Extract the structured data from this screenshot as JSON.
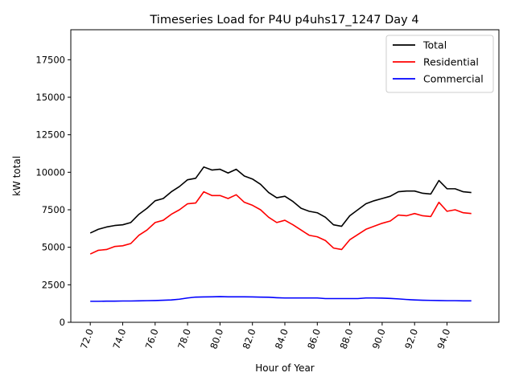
{
  "chart_data": {
    "type": "line",
    "title": "Timeseries Load for P4U p4uhs17_1247  Day 4",
    "xlabel": "Hour of Year",
    "ylabel": "kW total",
    "xlim": [
      70.8,
      97.2
    ],
    "ylim": [
      0,
      19500
    ],
    "grid": false,
    "legend_position": "top-right",
    "x_ticks": [
      72,
      74,
      76,
      78,
      80,
      82,
      84,
      86,
      88,
      90,
      92,
      94
    ],
    "x_tick_labels": [
      "72.0",
      "74.0",
      "76.0",
      "78.0",
      "80.0",
      "82.0",
      "84.0",
      "86.0",
      "88.0",
      "90.0",
      "92.0",
      "94.0"
    ],
    "y_ticks": [
      0,
      2500,
      5000,
      7500,
      10000,
      12500,
      15000,
      17500
    ],
    "y_tick_labels": [
      "0",
      "2500",
      "5000",
      "7500",
      "10000",
      "12500",
      "15000",
      "17500"
    ],
    "x": [
      72.0,
      72.5,
      73.0,
      73.5,
      74.0,
      74.5,
      75.0,
      75.5,
      76.0,
      76.5,
      77.0,
      77.5,
      78.0,
      78.5,
      79.0,
      79.5,
      80.0,
      80.5,
      81.0,
      81.5,
      82.0,
      82.5,
      83.0,
      83.5,
      84.0,
      84.5,
      85.0,
      85.5,
      86.0,
      86.5,
      87.0,
      87.5,
      88.0,
      88.5,
      89.0,
      89.5,
      90.0,
      90.5,
      91.0,
      91.5,
      92.0,
      92.5,
      93.0,
      93.5,
      94.0,
      94.5,
      95.0,
      95.5
    ],
    "series": [
      {
        "name": "Total",
        "color": "#000000",
        "values": [
          5950,
          6200,
          6350,
          6450,
          6500,
          6650,
          7200,
          7600,
          8100,
          8250,
          8700,
          9050,
          9500,
          9600,
          10350,
          10150,
          10200,
          9950,
          10200,
          9750,
          9550,
          9200,
          8650,
          8300,
          8400,
          8050,
          7600,
          7400,
          7300,
          7000,
          6500,
          6400,
          7100,
          7500,
          7900,
          8100,
          8250,
          8400,
          8700,
          8750,
          8750,
          8600,
          8550,
          9450,
          8900,
          8900,
          8700,
          8650
        ]
      },
      {
        "name": "Residential",
        "color": "#ff0000",
        "values": [
          4550,
          4800,
          4850,
          5050,
          5100,
          5250,
          5800,
          6150,
          6650,
          6800,
          7200,
          7500,
          7900,
          7950,
          8700,
          8450,
          8450,
          8250,
          8500,
          8000,
          7800,
          7500,
          7000,
          6650,
          6800,
          6500,
          6150,
          5800,
          5700,
          5450,
          4950,
          4850,
          5500,
          5850,
          6200,
          6400,
          6600,
          6750,
          7150,
          7100,
          7250,
          7100,
          7050,
          8000,
          7400,
          7500,
          7300,
          7250
        ]
      },
      {
        "name": "Commercial",
        "color": "#0000ff",
        "values": [
          1400,
          1400,
          1410,
          1410,
          1420,
          1420,
          1430,
          1440,
          1450,
          1470,
          1490,
          1540,
          1620,
          1680,
          1690,
          1700,
          1710,
          1700,
          1700,
          1700,
          1690,
          1680,
          1670,
          1640,
          1620,
          1620,
          1620,
          1620,
          1620,
          1580,
          1580,
          1580,
          1580,
          1580,
          1620,
          1620,
          1610,
          1590,
          1560,
          1520,
          1490,
          1470,
          1460,
          1450,
          1440,
          1440,
          1430,
          1430
        ]
      }
    ]
  }
}
